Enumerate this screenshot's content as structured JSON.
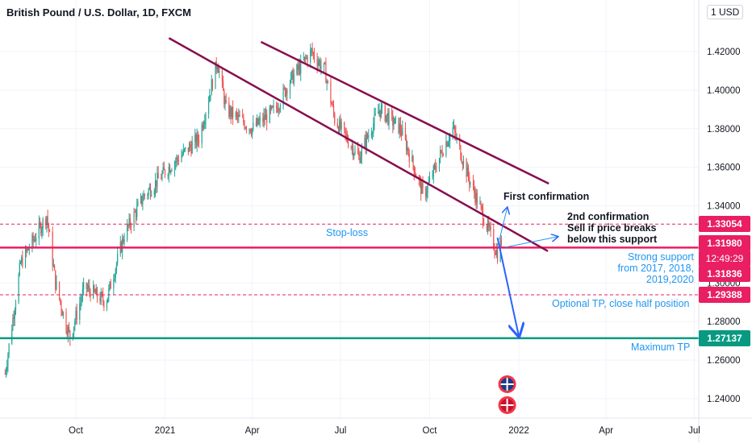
{
  "header": {
    "title": "British Pound / U.S. Dollar, 1D, FXCM",
    "currency": "USD"
  },
  "colors": {
    "up": "#26a69a",
    "down": "#ef5350",
    "channel": "#880e4f",
    "level_red": "#e91e63",
    "level_green": "#089981",
    "arrow_blue": "#2962ff",
    "annotation_blue": "#2196f3",
    "grid": "#f0f3fa"
  },
  "chart_data": {
    "type": "candlestick",
    "ylim": [
      1.23,
      1.435
    ],
    "yticks": [
      "1.42000",
      "1.40000",
      "1.38000",
      "1.36000",
      "1.34000",
      "1.30000",
      "1.28000",
      "1.26000",
      "1.24000"
    ],
    "yticks_values": [
      1.42,
      1.4,
      1.38,
      1.36,
      1.34,
      1.3,
      1.28,
      1.26,
      1.24
    ],
    "xticks": [
      "Oct",
      "2021",
      "Apr",
      "Jul",
      "Oct",
      "2022",
      "Apr",
      "Jul"
    ],
    "xticks_dates": [
      "2020-10-01",
      "2021-01-01",
      "2021-04-01",
      "2021-07-01",
      "2021-10-01",
      "2022-01-01",
      "2022-04-01",
      "2022-07-01"
    ],
    "date_range": [
      "2020-07-20",
      "2022-07-10"
    ],
    "price_path": [
      [
        "2020-07-20",
        1.253
      ],
      [
        "2020-08-05",
        1.31
      ],
      [
        "2020-09-01",
        1.335
      ],
      [
        "2020-09-10",
        1.3
      ],
      [
        "2020-09-20",
        1.28
      ],
      [
        "2020-09-25",
        1.272
      ],
      [
        "2020-10-10",
        1.298
      ],
      [
        "2020-11-01",
        1.29
      ],
      [
        "2020-11-20",
        1.325
      ],
      [
        "2020-12-10",
        1.345
      ],
      [
        "2021-01-05",
        1.36
      ],
      [
        "2021-02-05",
        1.375
      ],
      [
        "2021-02-24",
        1.415
      ],
      [
        "2021-03-05",
        1.39
      ],
      [
        "2021-04-01",
        1.38
      ],
      [
        "2021-04-25",
        1.39
      ],
      [
        "2021-05-10",
        1.405
      ],
      [
        "2021-06-01",
        1.42
      ],
      [
        "2021-06-15",
        1.41
      ],
      [
        "2021-06-25",
        1.385
      ],
      [
        "2021-07-20",
        1.365
      ],
      [
        "2021-08-10",
        1.39
      ],
      [
        "2021-09-01",
        1.38
      ],
      [
        "2021-09-25",
        1.345
      ],
      [
        "2021-10-15",
        1.37
      ],
      [
        "2021-10-25",
        1.38
      ],
      [
        "2021-11-10",
        1.355
      ],
      [
        "2021-11-25",
        1.335
      ],
      [
        "2021-12-10",
        1.315
      ],
      [
        "2021-12-14",
        1.322
      ]
    ],
    "levels": [
      {
        "name": "Stop-loss",
        "value": 1.33054,
        "style": "dashed",
        "color": "#e91e63"
      },
      {
        "name": "Strong support",
        "value": 1.31836,
        "style": "solid",
        "color": "#e91e63"
      },
      {
        "name": "Optional TP",
        "value": 1.29388,
        "style": "dashed",
        "color": "#e91e63"
      },
      {
        "name": "Maximum TP",
        "value": 1.27137,
        "style": "solid",
        "color": "#089981"
      }
    ],
    "channel_lines": [
      {
        "start": [
          "2021-01-05",
          1.427
        ],
        "end": [
          "2022-01-31",
          1.3165
        ]
      },
      {
        "start": [
          "2021-04-10",
          1.425
        ],
        "end": [
          "2022-02-01",
          1.3515
        ]
      }
    ],
    "arrows": [
      {
        "from": [
          "2021-12-10",
          1.3235
        ],
        "to": [
          "2022-01-01",
          1.2725
        ]
      },
      {
        "from": [
          "2021-12-18",
          1.3185
        ],
        "to": [
          "2022-02-10",
          1.324
        ]
      },
      {
        "from": [
          "2021-12-12",
          1.3225
        ],
        "to": [
          "2021-12-20",
          1.339
        ]
      }
    ],
    "price_labels": [
      {
        "value": 1.33054,
        "text": "1.33054",
        "color": "#e91e63"
      },
      {
        "value": 1.3198,
        "text": "1.31980",
        "color": "#e91e63"
      },
      {
        "value": 1.31836,
        "text": "1.31836",
        "color": "#e91e63"
      },
      {
        "value": 1.29388,
        "text": "1.29388",
        "color": "#e91e63"
      },
      {
        "value": 1.27137,
        "text": "1.27137",
        "color": "#089981"
      }
    ],
    "countdown": "12:49:29"
  },
  "annotations": {
    "stop_loss": "Stop-loss",
    "first_confirmation": "First confirmation",
    "second_conf_1": "2nd confirmation",
    "second_conf_2": "Sell if price breaks",
    "second_conf_3": "below this support",
    "support_1": "Strong support",
    "support_2": "from 2017, 2018,",
    "support_3": "2019,2020",
    "optional_tp": "Optional TP, close half position",
    "maximum_tp": "Maximum TP"
  },
  "events": {
    "uk_flag_icon": "uk-flag-icon",
    "us_flag_icon": "us-flag-icon"
  }
}
